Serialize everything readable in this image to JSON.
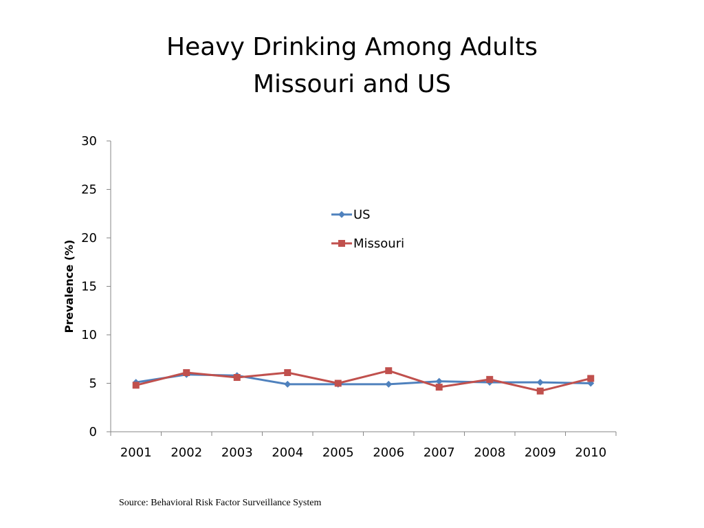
{
  "slide": {
    "title_line1": "Heavy Drinking Among Adults",
    "title_line2": "Missouri and US",
    "source": "Source: Behavioral Risk Factor Surveillance System"
  },
  "chart_data": {
    "type": "line",
    "title": "Heavy Drinking Among Adults Missouri and US",
    "xlabel": "",
    "ylabel": "Prevalence (%)",
    "ylim": [
      0,
      30
    ],
    "yticks": [
      0,
      5,
      10,
      15,
      20,
      25,
      30
    ],
    "categories": [
      "2001",
      "2002",
      "2003",
      "2004",
      "2005",
      "2006",
      "2007",
      "2008",
      "2009",
      "2010"
    ],
    "grid": false,
    "legend_position": "upper-center",
    "series": [
      {
        "name": "US",
        "color": "#4F81BD",
        "marker": "diamond",
        "values": [
          5.1,
          5.9,
          5.8,
          4.9,
          4.9,
          4.9,
          5.2,
          5.1,
          5.1,
          5.0
        ]
      },
      {
        "name": "Missouri",
        "color": "#C0504D",
        "marker": "square",
        "values": [
          4.8,
          6.1,
          5.6,
          6.1,
          5.0,
          6.3,
          4.6,
          5.4,
          4.2,
          5.5
        ]
      }
    ]
  }
}
